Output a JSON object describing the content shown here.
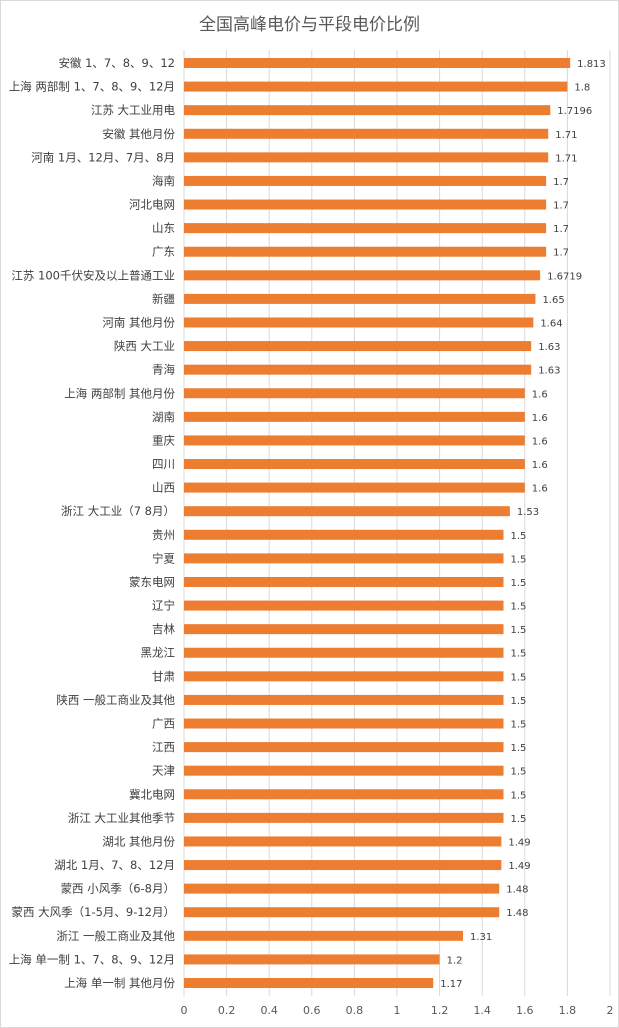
{
  "chart_data": {
    "type": "bar",
    "orientation": "horizontal",
    "title": "全国高峰电价与平段电价比例",
    "xlabel": "",
    "ylabel": "",
    "xlim": [
      0,
      2
    ],
    "xticks": [
      "0",
      "0.2",
      "0.4",
      "0.6",
      "0.8",
      "1",
      "1.2",
      "1.4",
      "1.6",
      "1.8",
      "2"
    ],
    "grid": true,
    "bar_color": "#ED7D31",
    "categories": [
      "安徽 1、7、8、9、12",
      "上海 两部制 1、7、8、9、12月",
      "江苏 大工业用电",
      "安徽 其他月份",
      "河南 1月、12月、7月、8月",
      "海南",
      "河北电网",
      "山东",
      "广东",
      "江苏 100千伏安及以上普通工业",
      "新疆",
      "河南 其他月份",
      "陕西 大工业",
      "青海",
      "上海 两部制 其他月份",
      "湖南",
      "重庆",
      "四川",
      "山西",
      "浙江 大工业（7 8月）",
      "贵州",
      "宁夏",
      "蒙东电网",
      "辽宁",
      "吉林",
      "黑龙江",
      "甘肃",
      "陕西 一般工商业及其他",
      "广西",
      "江西",
      "天津",
      "冀北电网",
      "浙江 大工业其他季节",
      "湖北 其他月份",
      "湖北 1月、7、8、12月",
      "蒙西 小风季（6-8月）",
      "蒙西 大风季（1-5月、9-12月）",
      "浙江 一般工商业及其他",
      "上海 单一制 1、7、8、9、12月",
      "上海 单一制 其他月份"
    ],
    "values": [
      1.813,
      1.8,
      1.7196,
      1.71,
      1.71,
      1.7,
      1.7,
      1.7,
      1.7,
      1.6719,
      1.65,
      1.64,
      1.63,
      1.63,
      1.6,
      1.6,
      1.6,
      1.6,
      1.6,
      1.53,
      1.5,
      1.5,
      1.5,
      1.5,
      1.5,
      1.5,
      1.5,
      1.5,
      1.5,
      1.5,
      1.5,
      1.5,
      1.5,
      1.49,
      1.49,
      1.48,
      1.48,
      1.31,
      1.2,
      1.17
    ],
    "value_labels": [
      "1.813",
      "1.8",
      "1.7196",
      "1.71",
      "1.71",
      "1.7",
      "1.7",
      "1.7",
      "1.7",
      "1.6719",
      "1.65",
      "1.64",
      "1.63",
      "1.63",
      "1.6",
      "1.6",
      "1.6",
      "1.6",
      "1.6",
      "1.53",
      "1.5",
      "1.5",
      "1.5",
      "1.5",
      "1.5",
      "1.5",
      "1.5",
      "1.5",
      "1.5",
      "1.5",
      "1.5",
      "1.5",
      "1.5",
      "1.49",
      "1.49",
      "1.48",
      "1.48",
      "1.31",
      "1.2",
      "1.17"
    ]
  }
}
